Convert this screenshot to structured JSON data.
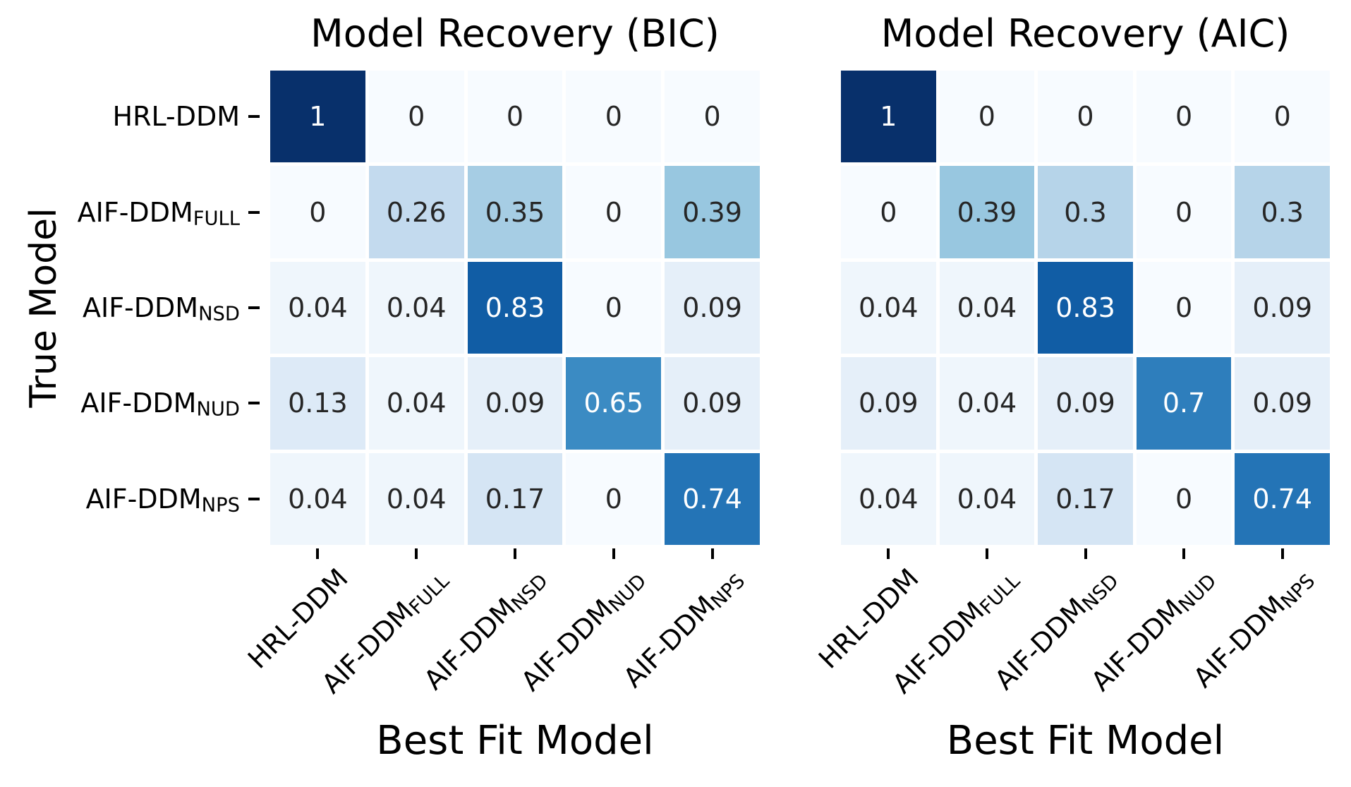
{
  "figure": {
    "background": "#ffffff",
    "y_axis_label": "True Model"
  },
  "panels": [
    {
      "title": "Model Recovery (BIC)",
      "x_axis_label": "Best Fit Model"
    },
    {
      "title": "Model Recovery (AIC)",
      "x_axis_label": "Best Fit Model"
    }
  ],
  "categories_rich": [
    {
      "main": "HRL-DDM",
      "sub": ""
    },
    {
      "main": "AIF-DDM",
      "sub": "FULL"
    },
    {
      "main": "AIF-DDM",
      "sub": "NSD"
    },
    {
      "main": "AIF-DDM",
      "sub": "NUD"
    },
    {
      "main": "AIF-DDM",
      "sub": "NPS"
    }
  ],
  "chart_data": [
    {
      "type": "heatmap",
      "title": "Model Recovery (BIC)",
      "xlabel": "Best Fit Model",
      "ylabel": "True Model",
      "x_categories": [
        "HRL-DDM",
        "AIF-DDM_FULL",
        "AIF-DDM_NSD",
        "AIF-DDM_NUD",
        "AIF-DDM_NPS"
      ],
      "y_categories": [
        "HRL-DDM",
        "AIF-DDM_FULL",
        "AIF-DDM_NSD",
        "AIF-DDM_NUD",
        "AIF-DDM_NPS"
      ],
      "values": [
        [
          1,
          0,
          0,
          0,
          0
        ],
        [
          0,
          0.26,
          0.35,
          0,
          0.39
        ],
        [
          0.04,
          0.04,
          0.83,
          0,
          0.09
        ],
        [
          0.13,
          0.04,
          0.09,
          0.65,
          0.09
        ],
        [
          0.04,
          0.04,
          0.17,
          0,
          0.74
        ]
      ],
      "vmin": 0,
      "vmax": 1,
      "colormap": "Blues",
      "annotated": true,
      "grid": false,
      "legend": "none"
    },
    {
      "type": "heatmap",
      "title": "Model Recovery (AIC)",
      "xlabel": "Best Fit Model",
      "ylabel": "True Model",
      "x_categories": [
        "HRL-DDM",
        "AIF-DDM_FULL",
        "AIF-DDM_NSD",
        "AIF-DDM_NUD",
        "AIF-DDM_NPS"
      ],
      "y_categories": [
        "HRL-DDM",
        "AIF-DDM_FULL",
        "AIF-DDM_NSD",
        "AIF-DDM_NUD",
        "AIF-DDM_NPS"
      ],
      "values": [
        [
          1,
          0,
          0,
          0,
          0
        ],
        [
          0,
          0.39,
          0.3,
          0,
          0.3
        ],
        [
          0.04,
          0.04,
          0.83,
          0,
          0.09
        ],
        [
          0.09,
          0.04,
          0.09,
          0.7,
          0.09
        ],
        [
          0.04,
          0.04,
          0.17,
          0,
          0.74
        ]
      ],
      "vmin": 0,
      "vmax": 1,
      "colormap": "Blues",
      "annotated": true,
      "grid": false,
      "legend": "none"
    }
  ],
  "colors": {
    "colormap_anchors": [
      "#f7fbff",
      "#deebf7",
      "#c6dbef",
      "#9ecae1",
      "#6baed6",
      "#4292c6",
      "#2171b5",
      "#08519c",
      "#08306b"
    ],
    "annotation_dark": "#262626",
    "annotation_light": "#ffffff",
    "tick": "#000000",
    "text": "#000000"
  }
}
